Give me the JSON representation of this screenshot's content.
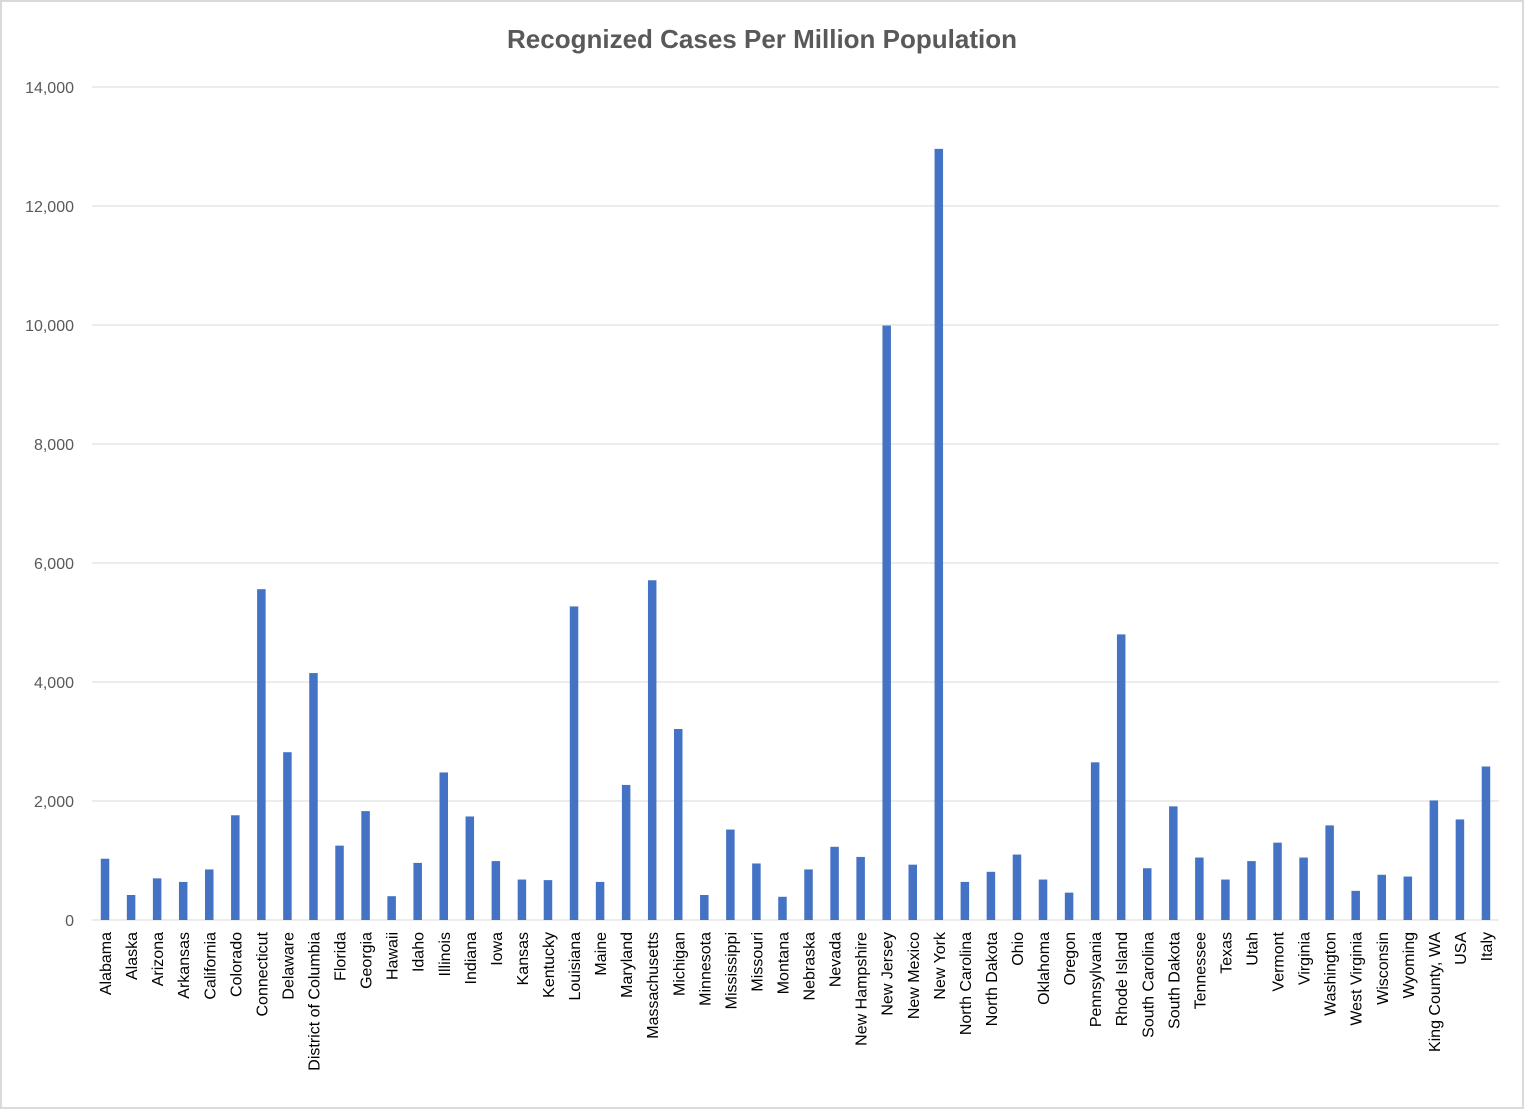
{
  "chart_data": {
    "type": "bar",
    "title": "Recognized Cases Per Million Population",
    "xlabel": "",
    "ylabel": "",
    "ylim": [
      0,
      14000
    ],
    "yticks": [
      0,
      2000,
      4000,
      6000,
      8000,
      10000,
      12000,
      14000
    ],
    "ytick_labels": [
      "0",
      "2,000",
      "4,000",
      "6,000",
      "8,000",
      "10,000",
      "12,000",
      "14,000"
    ],
    "grid": true,
    "legend": "none",
    "bar_color": "#4472c4",
    "categories": [
      "Alabama",
      "Alaska",
      "Arizona",
      "Arkansas",
      "California",
      "Colorado",
      "Connecticut",
      "Delaware",
      "District of Columbia",
      "Florida",
      "Georgia",
      "Hawaii",
      "Idaho",
      "Illinois",
      "Indiana",
      "Iowa",
      "Kansas",
      "Kentucky",
      "Louisiana",
      "Maine",
      "Maryland",
      "Massachusetts",
      "Michigan",
      "Minnesota",
      "Mississippi",
      "Missouri",
      "Montana",
      "Nebraska",
      "Nevada",
      "New Hampshire",
      "New Jersey",
      "New Mexico",
      "New York",
      "North Carolina",
      "North Dakota",
      "Ohio",
      "Oklahoma",
      "Oregon",
      "Pennsylvania",
      "Rhode Island",
      "South Carolina",
      "South Dakota",
      "Tennessee",
      "Texas",
      "Utah",
      "Vermont",
      "Virginia",
      "Washington",
      "West Virginia",
      "Wisconsin",
      "Wyoming",
      "King County, WA",
      "USA",
      "Italy"
    ],
    "values": [
      1030,
      420,
      700,
      640,
      850,
      1760,
      5560,
      2820,
      4150,
      1250,
      1830,
      400,
      960,
      2480,
      1740,
      990,
      680,
      670,
      5270,
      640,
      2270,
      5710,
      3210,
      420,
      1520,
      950,
      390,
      850,
      1230,
      1060,
      9990,
      930,
      12960,
      640,
      810,
      1100,
      680,
      460,
      2650,
      4800,
      870,
      1910,
      1050,
      680,
      990,
      1300,
      1050,
      1590,
      490,
      760,
      730,
      2010,
      1690,
      2580
    ]
  }
}
